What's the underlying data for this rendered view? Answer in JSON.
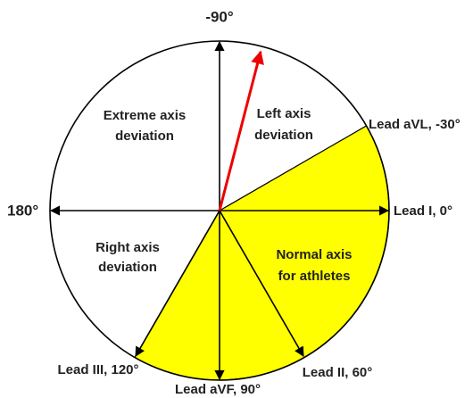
{
  "axis_labels": {
    "top": "-90°",
    "left": "180°"
  },
  "leads": {
    "lead_i": "Lead I, 0°",
    "lead_avl": "Lead aVL, -30°",
    "lead_ii": "Lead II, 60°",
    "lead_iii": "Lead III, 120°",
    "lead_avf": "Lead aVF, 90°"
  },
  "regions": {
    "extreme": [
      "Extreme axis",
      "deviation"
    ],
    "left": [
      "Left axis",
      "deviation"
    ],
    "right": [
      "Right axis",
      "deviation"
    ],
    "normal": [
      "Normal axis",
      "for athletes"
    ]
  }
}
